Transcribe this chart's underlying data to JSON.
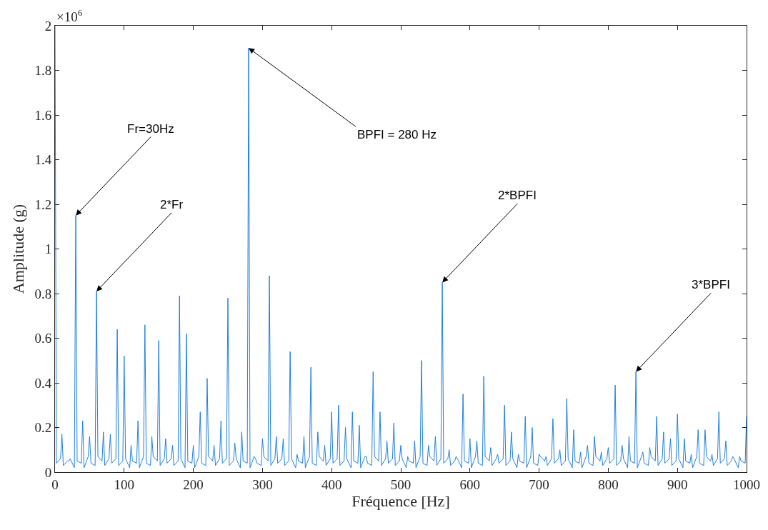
{
  "chart_data": {
    "type": "line",
    "xlabel": "Fréquence [Hz]",
    "ylabel": "Amplitude (g)",
    "annotations": [
      "×10$^{6}$",
      {
        "text": "Fr=30Hz",
        "x": 30,
        "y": 1.15
      },
      {
        "text": "2*Fr",
        "x": 60,
        "y": 0.81
      },
      {
        "text": "BPFI = 280 Hz",
        "x": 280,
        "y": 1.9
      },
      {
        "text": "2*BPFI",
        "x": 560,
        "y": 0.85
      },
      {
        "text": "3*BPFI",
        "x": 840,
        "y": 0.45
      }
    ],
    "xlim": [
      0,
      1000
    ],
    "xticks": [
      0,
      100,
      200,
      300,
      400,
      500,
      600,
      700,
      800,
      900,
      1000
    ],
    "ylim": [
      0,
      2
    ],
    "yticks": [
      0,
      0.2,
      0.4,
      0.6,
      0.8,
      1,
      1.2,
      1.4,
      1.6,
      1.8,
      2
    ],
    "grid": false,
    "marker": "none",
    "line_style": "solid",
    "series": [
      {
        "color": "#1f7fe0",
        "x": [
          0,
          2,
          8,
          10,
          12,
          18,
          20,
          22,
          28,
          30,
          32,
          38,
          40,
          42,
          48,
          50,
          52,
          58,
          60,
          62,
          68,
          70,
          72,
          78,
          80,
          82,
          88,
          90,
          92,
          98,
          100,
          102,
          108,
          110,
          112,
          118,
          120,
          122,
          128,
          130,
          132,
          138,
          140,
          142,
          148,
          150,
          152,
          158,
          160,
          162,
          168,
          170,
          172,
          178,
          180,
          182,
          188,
          190,
          192,
          198,
          200,
          202,
          208,
          210,
          212,
          218,
          220,
          222,
          228,
          230,
          232,
          238,
          240,
          242,
          248,
          250,
          252,
          258,
          260,
          262,
          268,
          270,
          272,
          278,
          280,
          282,
          288,
          290,
          292,
          298,
          300,
          302,
          308,
          310,
          312,
          318,
          320,
          322,
          328,
          330,
          332,
          338,
          340,
          342,
          348,
          350,
          352,
          358,
          360,
          362,
          368,
          370,
          372,
          378,
          380,
          382,
          388,
          390,
          392,
          398,
          400,
          402,
          408,
          410,
          412,
          418,
          420,
          422,
          428,
          430,
          432,
          438,
          440,
          442,
          448,
          450,
          452,
          458,
          460,
          462,
          468,
          470,
          472,
          478,
          480,
          482,
          488,
          490,
          492,
          498,
          500,
          502,
          508,
          510,
          512,
          518,
          520,
          522,
          528,
          530,
          532,
          538,
          540,
          542,
          548,
          550,
          552,
          558,
          560,
          562,
          568,
          570,
          572,
          578,
          580,
          582,
          588,
          590,
          592,
          598,
          600,
          602,
          608,
          610,
          612,
          618,
          620,
          622,
          628,
          630,
          632,
          638,
          640,
          642,
          648,
          650,
          652,
          658,
          660,
          662,
          668,
          670,
          672,
          678,
          680,
          682,
          688,
          690,
          692,
          698,
          700,
          702,
          708,
          710,
          712,
          718,
          720,
          722,
          728,
          730,
          732,
          738,
          740,
          742,
          748,
          750,
          752,
          758,
          760,
          762,
          768,
          770,
          772,
          778,
          780,
          782,
          788,
          790,
          792,
          798,
          800,
          802,
          808,
          810,
          812,
          818,
          820,
          822,
          828,
          830,
          832,
          838,
          840,
          842,
          848,
          850,
          852,
          858,
          860,
          862,
          868,
          870,
          872,
          878,
          880,
          882,
          888,
          890,
          892,
          898,
          900,
          902,
          908,
          910,
          912,
          918,
          920,
          922,
          928,
          930,
          932,
          938,
          940,
          942,
          948,
          950,
          952,
          958,
          960,
          962,
          968,
          970,
          972,
          978,
          980,
          982,
          988,
          990,
          992,
          998,
          1000
        ],
        "values": [
          2.0,
          0.04,
          0.06,
          0.17,
          0.03,
          0.05,
          0.05,
          0.06,
          0.02,
          1.15,
          0.05,
          0.04,
          0.23,
          0.02,
          0.07,
          0.16,
          0.04,
          0.03,
          0.81,
          0.07,
          0.05,
          0.18,
          0.03,
          0.06,
          0.17,
          0.04,
          0.06,
          0.64,
          0.03,
          0.05,
          0.52,
          0.06,
          0.02,
          0.12,
          0.05,
          0.04,
          0.23,
          0.02,
          0.07,
          0.66,
          0.04,
          0.03,
          0.16,
          0.07,
          0.05,
          0.59,
          0.03,
          0.06,
          0.15,
          0.04,
          0.06,
          0.12,
          0.03,
          0.05,
          0.79,
          0.06,
          0.02,
          0.62,
          0.05,
          0.04,
          0.12,
          0.02,
          0.07,
          0.27,
          0.04,
          0.03,
          0.42,
          0.07,
          0.05,
          0.12,
          0.03,
          0.06,
          0.23,
          0.04,
          0.06,
          0.78,
          0.03,
          0.05,
          0.13,
          0.06,
          0.02,
          0.18,
          0.05,
          0.04,
          1.9,
          0.02,
          0.07,
          0.06,
          0.04,
          0.03,
          0.15,
          0.07,
          0.05,
          0.88,
          0.03,
          0.06,
          0.16,
          0.04,
          0.06,
          0.15,
          0.03,
          0.05,
          0.54,
          0.06,
          0.02,
          0.08,
          0.05,
          0.04,
          0.16,
          0.02,
          0.07,
          0.47,
          0.04,
          0.03,
          0.18,
          0.07,
          0.05,
          0.12,
          0.03,
          0.06,
          0.27,
          0.04,
          0.06,
          0.3,
          0.03,
          0.05,
          0.2,
          0.06,
          0.02,
          0.27,
          0.05,
          0.04,
          0.21,
          0.02,
          0.07,
          0.07,
          0.04,
          0.03,
          0.45,
          0.07,
          0.05,
          0.27,
          0.03,
          0.06,
          0.14,
          0.04,
          0.06,
          0.22,
          0.03,
          0.05,
          0.12,
          0.06,
          0.02,
          0.07,
          0.05,
          0.04,
          0.14,
          0.02,
          0.07,
          0.5,
          0.04,
          0.03,
          0.12,
          0.07,
          0.05,
          0.16,
          0.03,
          0.06,
          0.85,
          0.04,
          0.06,
          0.1,
          0.03,
          0.05,
          0.07,
          0.06,
          0.02,
          0.35,
          0.05,
          0.04,
          0.15,
          0.02,
          0.07,
          0.14,
          0.04,
          0.03,
          0.43,
          0.07,
          0.05,
          0.11,
          0.03,
          0.06,
          0.08,
          0.04,
          0.06,
          0.3,
          0.03,
          0.05,
          0.18,
          0.06,
          0.02,
          0.08,
          0.05,
          0.04,
          0.25,
          0.02,
          0.07,
          0.2,
          0.04,
          0.03,
          0.08,
          0.07,
          0.05,
          0.07,
          0.03,
          0.06,
          0.24,
          0.04,
          0.06,
          0.1,
          0.03,
          0.05,
          0.33,
          0.06,
          0.02,
          0.19,
          0.05,
          0.04,
          0.09,
          0.02,
          0.07,
          0.12,
          0.04,
          0.03,
          0.16,
          0.07,
          0.05,
          0.09,
          0.03,
          0.06,
          0.11,
          0.04,
          0.06,
          0.39,
          0.03,
          0.05,
          0.12,
          0.06,
          0.02,
          0.16,
          0.05,
          0.04,
          0.45,
          0.02,
          0.07,
          0.09,
          0.04,
          0.03,
          0.11,
          0.07,
          0.05,
          0.25,
          0.03,
          0.06,
          0.18,
          0.04,
          0.06,
          0.15,
          0.03,
          0.05,
          0.26,
          0.06,
          0.02,
          0.15,
          0.05,
          0.04,
          0.08,
          0.02,
          0.07,
          0.19,
          0.04,
          0.03,
          0.19,
          0.07,
          0.05,
          0.08,
          0.03,
          0.06,
          0.27,
          0.04,
          0.06,
          0.14,
          0.03,
          0.05,
          0.07,
          0.06,
          0.02,
          0.07,
          0.05,
          0.04,
          0.25
        ]
      }
    ]
  }
}
